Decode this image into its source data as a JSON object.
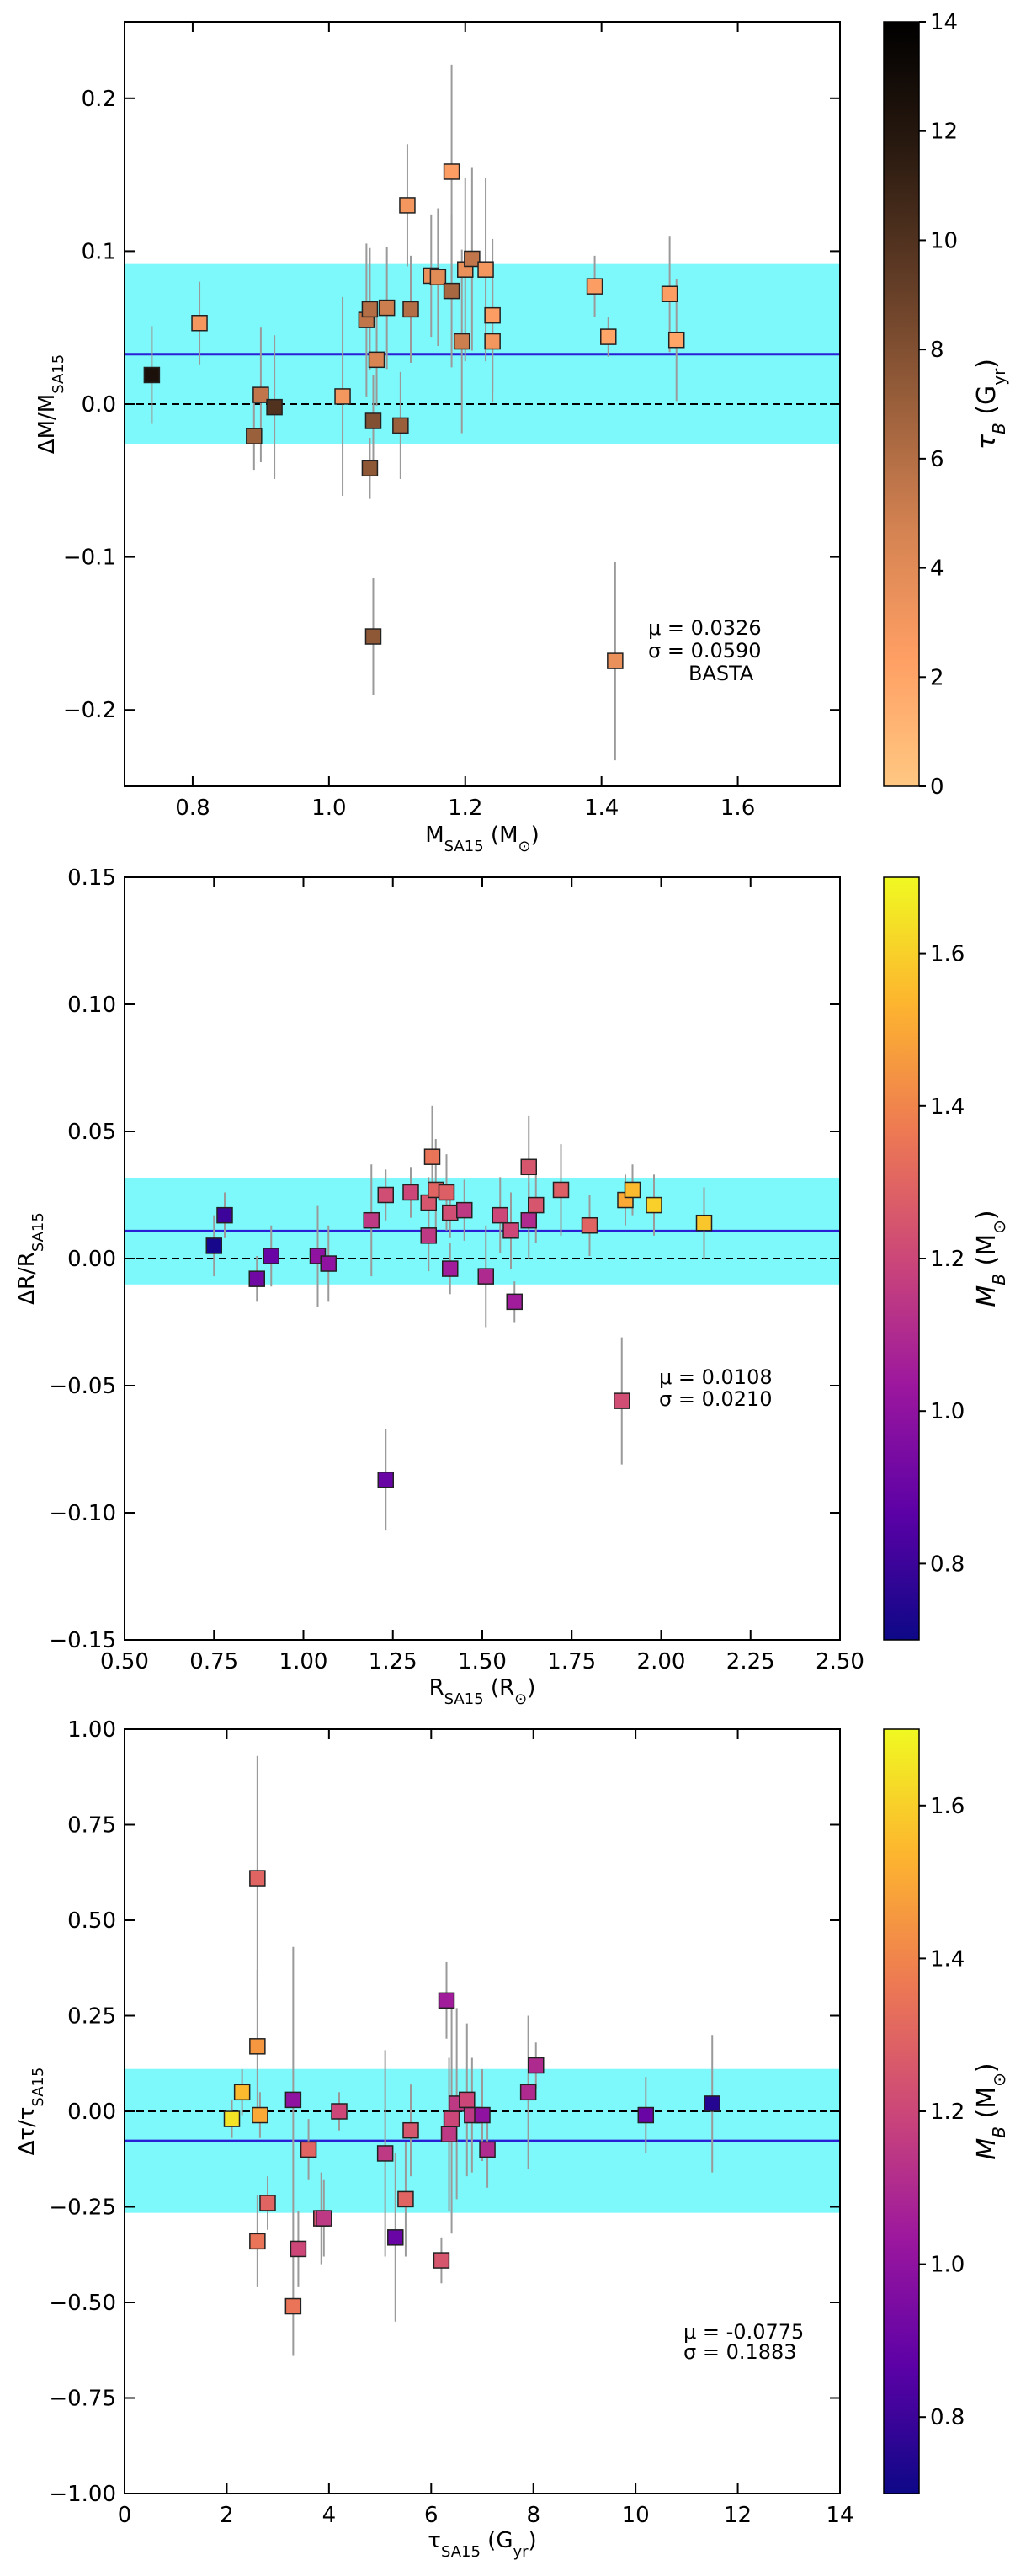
{
  "chart_data": [
    {
      "type": "scatter",
      "panel": "mass",
      "xlabel": "M_SA15 (M⊙)",
      "ylabel": "ΔM/M_SA15",
      "xlim": [
        0.7,
        1.75
      ],
      "ylim": [
        -0.25,
        0.25
      ],
      "xticks": [
        0.8,
        1.0,
        1.2,
        1.4,
        1.6
      ],
      "xtick_labels": [
        "0.8",
        "1.0",
        "1.2",
        "1.4",
        "1.6"
      ],
      "yticks": [
        -0.2,
        -0.1,
        0.0,
        0.1,
        0.2
      ],
      "ytick_labels": [
        "−0.2",
        "−0.1",
        "0.0",
        "0.1",
        "0.2"
      ],
      "mean": 0.0326,
      "sigma": 0.059,
      "stats_text": [
        "μ = 0.0326",
        "σ = 0.0590",
        "BASTA"
      ],
      "colorbar": {
        "label": "τ_B (G_yr)",
        "range": [
          0,
          14
        ],
        "ticks": [
          0,
          2,
          4,
          6,
          8,
          10,
          12,
          14
        ],
        "colormap": "copper-reversed",
        "stops": [
          "#ffc882",
          "#ff9f64",
          "#d58352",
          "#9a5f3b",
          "#603b25",
          "#2a1a10",
          "#000000"
        ]
      },
      "points": [
        {
          "x": 0.74,
          "y": 0.019,
          "err": 0.032,
          "c": 12.5
        },
        {
          "x": 0.81,
          "y": 0.053,
          "err": 0.027,
          "c": 3.0
        },
        {
          "x": 0.89,
          "y": -0.021,
          "err": 0.022,
          "c": 7.0
        },
        {
          "x": 0.9,
          "y": 0.006,
          "err": 0.044,
          "c": 5.5
        },
        {
          "x": 0.92,
          "y": -0.002,
          "err": 0.047,
          "c": 10.0
        },
        {
          "x": 1.02,
          "y": 0.005,
          "err": 0.065,
          "c": 3.0
        },
        {
          "x": 1.055,
          "y": 0.055,
          "err": 0.05,
          "c": 5.5
        },
        {
          "x": 1.06,
          "y": 0.062,
          "err": 0.04,
          "c": 6.0
        },
        {
          "x": 1.06,
          "y": -0.042,
          "err": 0.02,
          "c": 7.5
        },
        {
          "x": 1.065,
          "y": -0.011,
          "err": 0.03,
          "c": 8.0
        },
        {
          "x": 1.07,
          "y": 0.029,
          "err": 0.03,
          "c": 4.5
        },
        {
          "x": 1.065,
          "y": -0.152,
          "err": 0.038,
          "c": 7.5
        },
        {
          "x": 1.085,
          "y": 0.063,
          "err": 0.04,
          "c": 5.0
        },
        {
          "x": 1.105,
          "y": -0.014,
          "err": 0.035,
          "c": 7.0
        },
        {
          "x": 1.115,
          "y": 0.13,
          "err": 0.04,
          "c": 3.0
        },
        {
          "x": 1.12,
          "y": 0.062,
          "err": 0.035,
          "c": 6.0
        },
        {
          "x": 1.15,
          "y": 0.084,
          "err": 0.04,
          "c": 3.5
        },
        {
          "x": 1.16,
          "y": 0.083,
          "err": 0.045,
          "c": 4.0
        },
        {
          "x": 1.18,
          "y": 0.152,
          "err": 0.07,
          "c": 2.5
        },
        {
          "x": 1.18,
          "y": 0.074,
          "err": 0.05,
          "c": 6.5
        },
        {
          "x": 1.195,
          "y": 0.041,
          "err": 0.06,
          "c": 5.0
        },
        {
          "x": 1.2,
          "y": 0.088,
          "err": 0.06,
          "c": 3.5
        },
        {
          "x": 1.21,
          "y": 0.095,
          "err": 0.06,
          "c": 5.5
        },
        {
          "x": 1.23,
          "y": 0.088,
          "err": 0.06,
          "c": 3.0
        },
        {
          "x": 1.24,
          "y": 0.058,
          "err": 0.05,
          "c": 2.5
        },
        {
          "x": 1.24,
          "y": 0.041,
          "err": 0.04,
          "c": 3.0
        },
        {
          "x": 1.39,
          "y": 0.077,
          "err": 0.02,
          "c": 2.5
        },
        {
          "x": 1.41,
          "y": 0.044,
          "err": 0.013,
          "c": 2.0
        },
        {
          "x": 1.42,
          "y": -0.168,
          "err": 0.065,
          "c": 3.5
        },
        {
          "x": 1.5,
          "y": 0.072,
          "err": 0.038,
          "c": 2.5
        },
        {
          "x": 1.51,
          "y": 0.042,
          "err": 0.04,
          "c": 2.0
        }
      ]
    },
    {
      "type": "scatter",
      "panel": "radius",
      "xlabel": "R_SA15 (R⊙)",
      "ylabel": "ΔR/R_SA15",
      "xlim": [
        0.5,
        2.5
      ],
      "ylim": [
        -0.15,
        0.15
      ],
      "xticks": [
        0.5,
        0.75,
        1.0,
        1.25,
        1.5,
        1.75,
        2.0,
        2.25,
        2.5
      ],
      "xtick_labels": [
        "0.50",
        "0.75",
        "1.00",
        "1.25",
        "1.50",
        "1.75",
        "2.00",
        "2.25",
        "2.50"
      ],
      "yticks": [
        -0.15,
        -0.1,
        -0.05,
        0.0,
        0.05,
        0.1,
        0.15
      ],
      "ytick_labels": [
        "−0.15",
        "−0.10",
        "−0.05",
        "0.00",
        "0.05",
        "0.10",
        "0.15"
      ],
      "mean": 0.0108,
      "sigma": 0.021,
      "stats_text": [
        "μ = 0.0108",
        "σ = 0.0210"
      ],
      "colorbar": {
        "label": "M_B (M⊙)",
        "range": [
          0.7,
          1.7
        ],
        "ticks": [
          0.8,
          1.0,
          1.2,
          1.4,
          1.6
        ],
        "colormap": "plasma",
        "stops": [
          "#0d0887",
          "#5c01a6",
          "#9c179e",
          "#cc4778",
          "#ed7953",
          "#fdb42f",
          "#f0f921"
        ]
      },
      "points": [
        {
          "x": 0.75,
          "y": 0.005,
          "err": 0.012,
          "c": 0.72
        },
        {
          "x": 0.78,
          "y": 0.017,
          "err": 0.009,
          "c": 0.8
        },
        {
          "x": 0.87,
          "y": -0.008,
          "err": 0.009,
          "c": 0.92
        },
        {
          "x": 0.91,
          "y": 0.001,
          "err": 0.012,
          "c": 0.9
        },
        {
          "x": 1.04,
          "y": 0.001,
          "err": 0.02,
          "c": 1.0
        },
        {
          "x": 1.07,
          "y": -0.002,
          "err": 0.015,
          "c": 1.0
        },
        {
          "x": 1.19,
          "y": 0.015,
          "err": 0.022,
          "c": 1.15
        },
        {
          "x": 1.23,
          "y": 0.025,
          "err": 0.01,
          "c": 1.22
        },
        {
          "x": 1.23,
          "y": -0.087,
          "err": 0.02,
          "c": 0.9
        },
        {
          "x": 1.3,
          "y": 0.026,
          "err": 0.01,
          "c": 1.2
        },
        {
          "x": 1.35,
          "y": 0.009,
          "err": 0.014,
          "c": 1.15
        },
        {
          "x": 1.35,
          "y": 0.022,
          "err": 0.01,
          "c": 1.25
        },
        {
          "x": 1.36,
          "y": 0.04,
          "err": 0.02,
          "c": 1.35
        },
        {
          "x": 1.37,
          "y": 0.027,
          "err": 0.02,
          "c": 1.3
        },
        {
          "x": 1.4,
          "y": 0.026,
          "err": 0.015,
          "c": 1.28
        },
        {
          "x": 1.41,
          "y": 0.018,
          "err": 0.01,
          "c": 1.22
        },
        {
          "x": 1.41,
          "y": -0.004,
          "err": 0.01,
          "c": 1.05
        },
        {
          "x": 1.45,
          "y": 0.019,
          "err": 0.012,
          "c": 1.15
        },
        {
          "x": 1.51,
          "y": -0.007,
          "err": 0.02,
          "c": 1.1
        },
        {
          "x": 1.55,
          "y": 0.017,
          "err": 0.015,
          "c": 1.2
        },
        {
          "x": 1.58,
          "y": 0.011,
          "err": 0.015,
          "c": 1.2
        },
        {
          "x": 1.59,
          "y": -0.017,
          "err": 0.008,
          "c": 1.05
        },
        {
          "x": 1.63,
          "y": 0.015,
          "err": 0.015,
          "c": 1.1
        },
        {
          "x": 1.63,
          "y": 0.036,
          "err": 0.02,
          "c": 1.25
        },
        {
          "x": 1.65,
          "y": 0.021,
          "err": 0.015,
          "c": 1.25
        },
        {
          "x": 1.72,
          "y": 0.027,
          "err": 0.018,
          "c": 1.28
        },
        {
          "x": 1.8,
          "y": 0.013,
          "err": 0.012,
          "c": 1.3
        },
        {
          "x": 1.89,
          "y": -0.056,
          "err": 0.025,
          "c": 1.22
        },
        {
          "x": 1.9,
          "y": 0.023,
          "err": 0.01,
          "c": 1.5
        },
        {
          "x": 1.92,
          "y": 0.027,
          "err": 0.01,
          "c": 1.55
        },
        {
          "x": 1.98,
          "y": 0.021,
          "err": 0.012,
          "c": 1.6
        },
        {
          "x": 2.12,
          "y": 0.014,
          "err": 0.014,
          "c": 1.58
        }
      ]
    },
    {
      "type": "scatter",
      "panel": "age",
      "xlabel": "τ_SA15 (G_yr)",
      "ylabel": "Δτ/τ_SA15",
      "xlim": [
        0,
        14
      ],
      "ylim": [
        -1.0,
        1.0
      ],
      "xticks": [
        0,
        2,
        4,
        6,
        8,
        10,
        12,
        14
      ],
      "xtick_labels": [
        "0",
        "2",
        "4",
        "6",
        "8",
        "10",
        "12",
        "14"
      ],
      "yticks": [
        -1.0,
        -0.75,
        -0.5,
        -0.25,
        0.0,
        0.25,
        0.5,
        0.75,
        1.0
      ],
      "ytick_labels": [
        "−1.00",
        "−0.75",
        "−0.50",
        "−0.25",
        "0.00",
        "0.25",
        "0.50",
        "0.75",
        "1.00"
      ],
      "mean": -0.0775,
      "sigma": 0.1883,
      "stats_text": [
        "μ = -0.0775",
        "σ = 0.1883"
      ],
      "colorbar": {
        "label": "M_B (M⊙)",
        "range": [
          0.7,
          1.7
        ],
        "ticks": [
          0.8,
          1.0,
          1.2,
          1.4,
          1.6
        ],
        "colormap": "plasma",
        "stops": [
          "#0d0887",
          "#5c01a6",
          "#9c179e",
          "#cc4778",
          "#ed7953",
          "#fdb42f",
          "#f0f921"
        ]
      },
      "points": [
        {
          "x": 2.1,
          "y": -0.02,
          "err": 0.05,
          "c": 1.65
        },
        {
          "x": 2.3,
          "y": 0.05,
          "err": 0.06,
          "c": 1.55
        },
        {
          "x": 2.6,
          "y": 0.61,
          "err": 0.32,
          "c": 1.3
        },
        {
          "x": 2.6,
          "y": 0.17,
          "err": 0.2,
          "c": 1.45
        },
        {
          "x": 2.6,
          "y": -0.34,
          "err": 0.12,
          "c": 1.35
        },
        {
          "x": 2.65,
          "y": -0.01,
          "err": 0.06,
          "c": 1.5
        },
        {
          "x": 2.8,
          "y": -0.24,
          "err": 0.07,
          "c": 1.3
        },
        {
          "x": 3.3,
          "y": 0.03,
          "err": 0.4,
          "c": 1.0
        },
        {
          "x": 3.3,
          "y": -0.51,
          "err": 0.13,
          "c": 1.35
        },
        {
          "x": 3.4,
          "y": -0.36,
          "err": 0.1,
          "c": 1.2
        },
        {
          "x": 3.6,
          "y": -0.1,
          "err": 0.08,
          "c": 1.3
        },
        {
          "x": 3.85,
          "y": -0.28,
          "err": 0.12,
          "c": 1.25
        },
        {
          "x": 3.9,
          "y": -0.28,
          "err": 0.1,
          "c": 1.15
        },
        {
          "x": 4.2,
          "y": 0.0,
          "err": 0.05,
          "c": 1.2
        },
        {
          "x": 5.1,
          "y": -0.11,
          "err": 0.27,
          "c": 1.15
        },
        {
          "x": 5.3,
          "y": -0.33,
          "err": 0.22,
          "c": 0.9
        },
        {
          "x": 5.5,
          "y": -0.23,
          "err": 0.15,
          "c": 1.3
        },
        {
          "x": 5.6,
          "y": -0.05,
          "err": 0.12,
          "c": 1.25
        },
        {
          "x": 6.2,
          "y": -0.39,
          "err": 0.06,
          "c": 1.25
        },
        {
          "x": 6.3,
          "y": 0.29,
          "err": 0.1,
          "c": 1.05
        },
        {
          "x": 6.35,
          "y": -0.06,
          "err": 0.2,
          "c": 1.15
        },
        {
          "x": 6.4,
          "y": -0.02,
          "err": 0.3,
          "c": 1.2
        },
        {
          "x": 6.5,
          "y": 0.02,
          "err": 0.25,
          "c": 1.15
        },
        {
          "x": 6.7,
          "y": 0.03,
          "err": 0.2,
          "c": 1.2
        },
        {
          "x": 6.8,
          "y": -0.01,
          "err": 0.15,
          "c": 1.15
        },
        {
          "x": 7.0,
          "y": -0.01,
          "err": 0.12,
          "c": 1.0
        },
        {
          "x": 7.1,
          "y": -0.1,
          "err": 0.1,
          "c": 1.1
        },
        {
          "x": 7.9,
          "y": 0.05,
          "err": 0.2,
          "c": 1.1
        },
        {
          "x": 8.05,
          "y": 0.12,
          "err": 0.06,
          "c": 1.1
        },
        {
          "x": 10.2,
          "y": -0.01,
          "err": 0.1,
          "c": 0.9
        },
        {
          "x": 11.5,
          "y": 0.02,
          "err": 0.18,
          "c": 0.75
        }
      ]
    }
  ]
}
